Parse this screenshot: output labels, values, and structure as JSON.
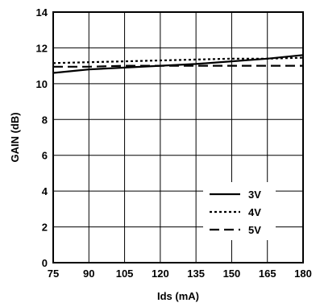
{
  "chart_data": {
    "type": "line",
    "title": "",
    "xlabel": "Ids (mA)",
    "ylabel": "GAIN (dB)",
    "xlim": [
      75,
      180
    ],
    "ylim": [
      0,
      14
    ],
    "xticks": [
      75,
      90,
      105,
      120,
      135,
      150,
      165,
      180
    ],
    "yticks": [
      0,
      2,
      4,
      6,
      8,
      10,
      12,
      14
    ],
    "grid": true,
    "legend_position": "bottom-right",
    "series": [
      {
        "name": "3V",
        "style": "solid",
        "color": "#000000",
        "x": [
          75,
          90,
          105,
          120,
          135,
          150,
          165,
          180
        ],
        "y": [
          10.6,
          10.8,
          10.9,
          11.0,
          11.1,
          11.25,
          11.4,
          11.6
        ]
      },
      {
        "name": "4V",
        "style": "dotted",
        "color": "#000000",
        "x": [
          75,
          90,
          105,
          120,
          135,
          150,
          165,
          180
        ],
        "y": [
          11.15,
          11.2,
          11.25,
          11.3,
          11.35,
          11.4,
          11.4,
          11.45
        ]
      },
      {
        "name": "5V",
        "style": "dashed",
        "color": "#000000",
        "x": [
          75,
          90,
          105,
          120,
          135,
          150,
          165,
          180
        ],
        "y": [
          10.95,
          10.95,
          11.0,
          11.0,
          11.0,
          11.0,
          11.0,
          11.0
        ]
      }
    ]
  }
}
